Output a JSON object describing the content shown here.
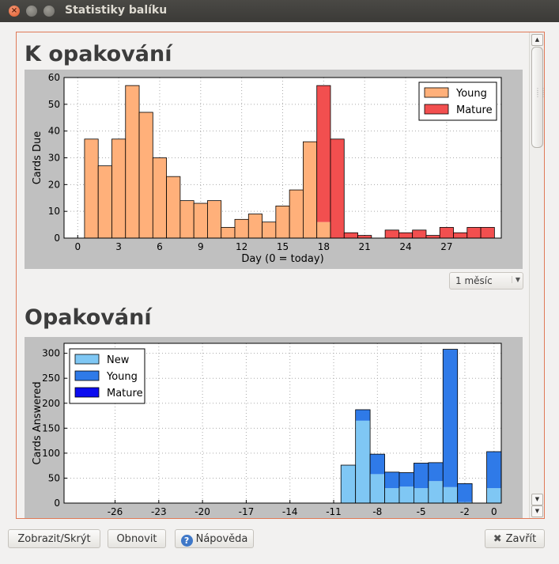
{
  "window": {
    "title": "Statistiky balíku"
  },
  "sections": {
    "due": {
      "title": "K opakování"
    },
    "reviews": {
      "title": "Opakování"
    }
  },
  "period_select": {
    "value": "1 měsíc"
  },
  "buttons": {
    "toggle": "Zobrazit/Skrýt",
    "refresh": "Obnovit",
    "help": "Nápověda",
    "close": "Zavřít"
  },
  "colors": {
    "young_due": "#ffb07a",
    "mature_due": "#f24f4f",
    "new_rev": "#7fc7f4",
    "young_rev": "#2f7ae8",
    "mature_rev": "#0b0bef"
  },
  "chart_data": [
    {
      "type": "bar",
      "stacked": true,
      "xlabel": "Day (0 = today)",
      "ylabel": "Cards Due",
      "xlim": [
        -1,
        31
      ],
      "ylim": [
        0,
        60
      ],
      "xticks": [
        "0",
        "3",
        "6",
        "9",
        "12",
        "15",
        "18",
        "21",
        "24",
        "27"
      ],
      "yticks": [
        "0",
        "10",
        "20",
        "30",
        "40",
        "50",
        "60"
      ],
      "grid": true,
      "legend_position": "top-right",
      "x": [
        1,
        2,
        3,
        4,
        5,
        6,
        7,
        8,
        9,
        10,
        11,
        12,
        13,
        14,
        15,
        16,
        17,
        18,
        19,
        20,
        21,
        22,
        23,
        24,
        25,
        26,
        27,
        28,
        29,
        30
      ],
      "series": [
        {
          "name": "Young",
          "values": [
            37,
            27,
            37,
            57,
            47,
            30,
            23,
            14,
            13,
            14,
            4,
            7,
            9,
            6,
            12,
            18,
            36,
            6,
            0,
            0,
            0,
            0,
            0,
            0,
            0,
            0,
            0,
            0,
            0,
            0
          ]
        },
        {
          "name": "Mature",
          "values": [
            0,
            0,
            0,
            0,
            0,
            0,
            0,
            0,
            0,
            0,
            0,
            0,
            0,
            0,
            0,
            0,
            0,
            51,
            37,
            2,
            1,
            0,
            3,
            2,
            3,
            1,
            4,
            2,
            4,
            4
          ]
        }
      ]
    },
    {
      "type": "bar",
      "stacked": true,
      "xlabel": "",
      "ylabel": "Cards Answered",
      "xlim": [
        -29.5,
        0.5
      ],
      "ylim": [
        0,
        320
      ],
      "xticks": [
        "-26",
        "-23",
        "-20",
        "-17",
        "-14",
        "-11",
        "-8",
        "-5",
        "-2",
        "0"
      ],
      "yticks": [
        "0",
        "50",
        "100",
        "150",
        "200",
        "250",
        "300"
      ],
      "grid": true,
      "legend_position": "top-left",
      "x": [
        -10,
        -9,
        -8,
        -7,
        -6,
        -5,
        -4,
        -3,
        -2,
        0
      ],
      "series": [
        {
          "name": "New",
          "values": [
            76,
            165,
            58,
            30,
            33,
            30,
            44,
            32,
            2,
            30
          ]
        },
        {
          "name": "Young",
          "values": [
            0,
            22,
            40,
            32,
            28,
            50,
            37,
            276,
            37,
            73
          ]
        },
        {
          "name": "Mature",
          "values": [
            0,
            0,
            0,
            0,
            0,
            0,
            0,
            0,
            0,
            0
          ]
        }
      ]
    }
  ]
}
